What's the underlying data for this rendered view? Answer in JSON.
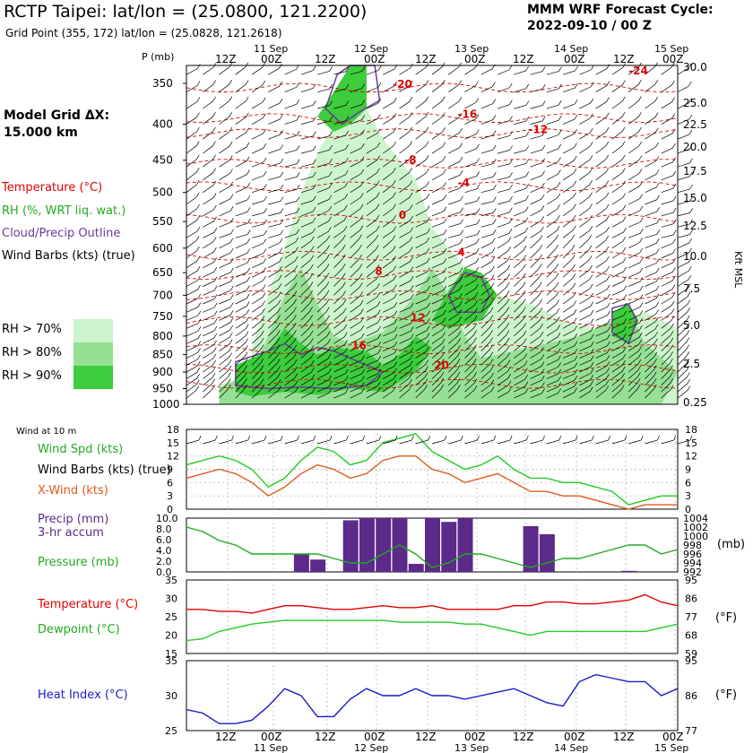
{
  "header": {
    "title": "RCTP Taipei:  lat/lon = (25.0800, 121.2200)",
    "subtitle": "Grid Point (355, 172) lat/lon = (25.0828, 121.2618)",
    "cycle_line1": "MMM WRF Forecast Cycle:",
    "cycle_line2": "2022-09-10 / 00  Z",
    "grid_line1": "Model Grid ΔX:",
    "grid_line2": " 15.000 km"
  },
  "legend": {
    "temperature": "Temperature (°C)",
    "rh": "RH (%, WRT liq. wat.)",
    "cloud": "Cloud/Precip Outline",
    "wind": "Wind Barbs (kts) (true)",
    "rh70": "RH > 70%",
    "rh80": "RH > 80%",
    "rh90": "RH > 90%"
  },
  "colors": {
    "temp": "#e00000",
    "rh70": "#cdf5cd",
    "rh80": "#96e096",
    "rh90": "#3ccc3c",
    "cloud": "#6a3a9a",
    "wind_spd": "#22cc22",
    "xwind": "#e05a1a",
    "precip": "#5c2a8a",
    "pressure": "#22aa22",
    "dewpoint": "#22cc22",
    "heat_index": "#1a1acc"
  },
  "time_axis": {
    "top_dates": [
      "11 Sep",
      "12 Sep",
      "13 Sep",
      "14 Sep",
      "15 Sep"
    ],
    "hour_labels": [
      "12Z",
      "00Z",
      "12Z",
      "00Z",
      "12Z",
      "00Z",
      "12Z",
      "00Z",
      "12Z",
      "00Z"
    ],
    "bottom_dates": [
      "11 Sep",
      "12 Sep",
      "13 Sep",
      "14 Sep",
      "15 Sep"
    ]
  },
  "chart_data": [
    {
      "type": "area",
      "name": "cross-section",
      "ylabel_left": "P (mb)",
      "ylabel_right": "Kft MSL",
      "pressure_ticks": [
        350,
        400,
        450,
        500,
        550,
        600,
        650,
        700,
        750,
        800,
        850,
        900,
        950,
        1000
      ],
      "height_ticks": [
        "30.0",
        "25.0",
        "22.5",
        "20.0",
        "17.5",
        "15.0",
        "12.5",
        "10.0",
        "7.5",
        "5.0",
        "2.5",
        "0.25"
      ],
      "temp_labels": [
        {
          "text": "-24",
          "t": 8.5,
          "p": 340
        },
        {
          "text": "-20",
          "t": 4.5,
          "p": 355
        },
        {
          "text": "-16",
          "t": 5.6,
          "p": 392
        },
        {
          "text": "-12",
          "t": 6.8,
          "p": 412
        },
        {
          "text": "-8",
          "t": 4.7,
          "p": 455
        },
        {
          "text": "-4",
          "t": 5.6,
          "p": 490
        },
        {
          "text": "0",
          "t": 4.6,
          "p": 545
        },
        {
          "text": "4",
          "t": 5.6,
          "p": 615
        },
        {
          "text": "8",
          "t": 4.2,
          "p": 655
        },
        {
          "text": "12",
          "t": 4.8,
          "p": 762
        },
        {
          "text": "16",
          "t": 3.8,
          "p": 835
        },
        {
          "text": "20",
          "t": 5.2,
          "p": 890
        }
      ],
      "time_units": "hours since 2022-09-10 00Z"
    },
    {
      "type": "line",
      "name": "surface-wind",
      "title": "Wind at 10 m",
      "ylim": [
        0,
        18
      ],
      "yticks": [
        0,
        3,
        6,
        9,
        12,
        15,
        18
      ],
      "series": [
        {
          "name": "Wind Spd (kts)",
          "values": [
            10,
            11,
            12,
            11,
            9,
            5,
            7,
            11,
            14,
            13,
            10,
            11,
            15,
            16,
            17,
            13,
            11,
            9,
            10,
            12,
            9,
            7,
            7,
            6,
            6,
            5,
            4,
            1,
            2,
            3,
            3
          ]
        },
        {
          "name": "X-Wind (kts)",
          "values": [
            7,
            8,
            9,
            8,
            6,
            3,
            5,
            8,
            10,
            9,
            7,
            8,
            11,
            12,
            12,
            9,
            8,
            6,
            7,
            8,
            6,
            4,
            4,
            3,
            3,
            2,
            1,
            0,
            1,
            1,
            1
          ]
        }
      ]
    },
    {
      "type": "bar",
      "name": "precip-pressure",
      "ylim": [
        0,
        10
      ],
      "yticks": [
        "0.0",
        "2.0",
        "4.0",
        "6.0",
        "8.0",
        "10.0"
      ],
      "pressure_ticks": [
        "1004",
        "1002",
        "1000",
        "998",
        "996",
        "994",
        "992"
      ],
      "precip_3hr": [
        0,
        0,
        0,
        0,
        0,
        0,
        0,
        3.4,
        2.3,
        0,
        9.6,
        10.0,
        10.0,
        10.0,
        1.5,
        10.0,
        9.3,
        10.0,
        0,
        0,
        0,
        8.5,
        7.0,
        0,
        0,
        0,
        0,
        0.2,
        0,
        0,
        0
      ],
      "pressure": [
        1002,
        1001,
        999,
        998,
        996,
        996,
        996,
        996,
        996,
        995,
        994,
        994,
        996,
        998,
        996,
        993,
        994,
        996,
        996,
        995,
        994,
        993,
        994,
        995,
        995,
        996,
        997,
        998,
        998,
        996,
        997
      ]
    },
    {
      "type": "line",
      "name": "temp-dewpoint",
      "ylim": [
        15,
        35
      ],
      "yticks": [
        15,
        20,
        25,
        30,
        35
      ],
      "ftick_labels": [
        "59",
        "68",
        "77",
        "86",
        "95"
      ],
      "series": [
        {
          "name": "Temperature (°C)",
          "values": [
            27,
            27,
            26.5,
            26.5,
            26,
            27,
            28,
            28,
            27.5,
            27,
            27,
            27.5,
            28,
            27.5,
            27.5,
            28,
            27,
            27,
            27,
            27,
            28,
            28,
            29,
            29,
            28.5,
            28.5,
            29,
            29.5,
            31,
            29,
            28
          ]
        },
        {
          "name": "Dewpoint (°C)",
          "values": [
            18.5,
            19,
            21,
            22,
            23,
            23.5,
            24,
            24,
            24,
            24,
            24,
            24,
            24,
            23.5,
            23.5,
            23.5,
            23.5,
            23,
            23,
            22,
            21,
            20,
            21,
            21,
            21,
            21,
            21,
            21,
            21,
            22,
            23
          ]
        }
      ]
    },
    {
      "type": "line",
      "name": "heat-index",
      "ylim": [
        25,
        35
      ],
      "yticks": [
        25,
        30,
        35
      ],
      "ftick_labels": [
        "77",
        "86",
        "95"
      ],
      "series": [
        {
          "name": "Heat Index (°C)",
          "values": [
            28,
            27.5,
            26,
            26,
            26.5,
            28.5,
            31,
            30,
            27,
            27,
            29.5,
            31,
            30,
            30,
            31,
            30,
            30,
            29.5,
            30,
            30.5,
            31,
            30,
            29,
            28.5,
            32,
            33,
            32.5,
            32,
            32,
            30,
            31
          ]
        }
      ]
    }
  ]
}
